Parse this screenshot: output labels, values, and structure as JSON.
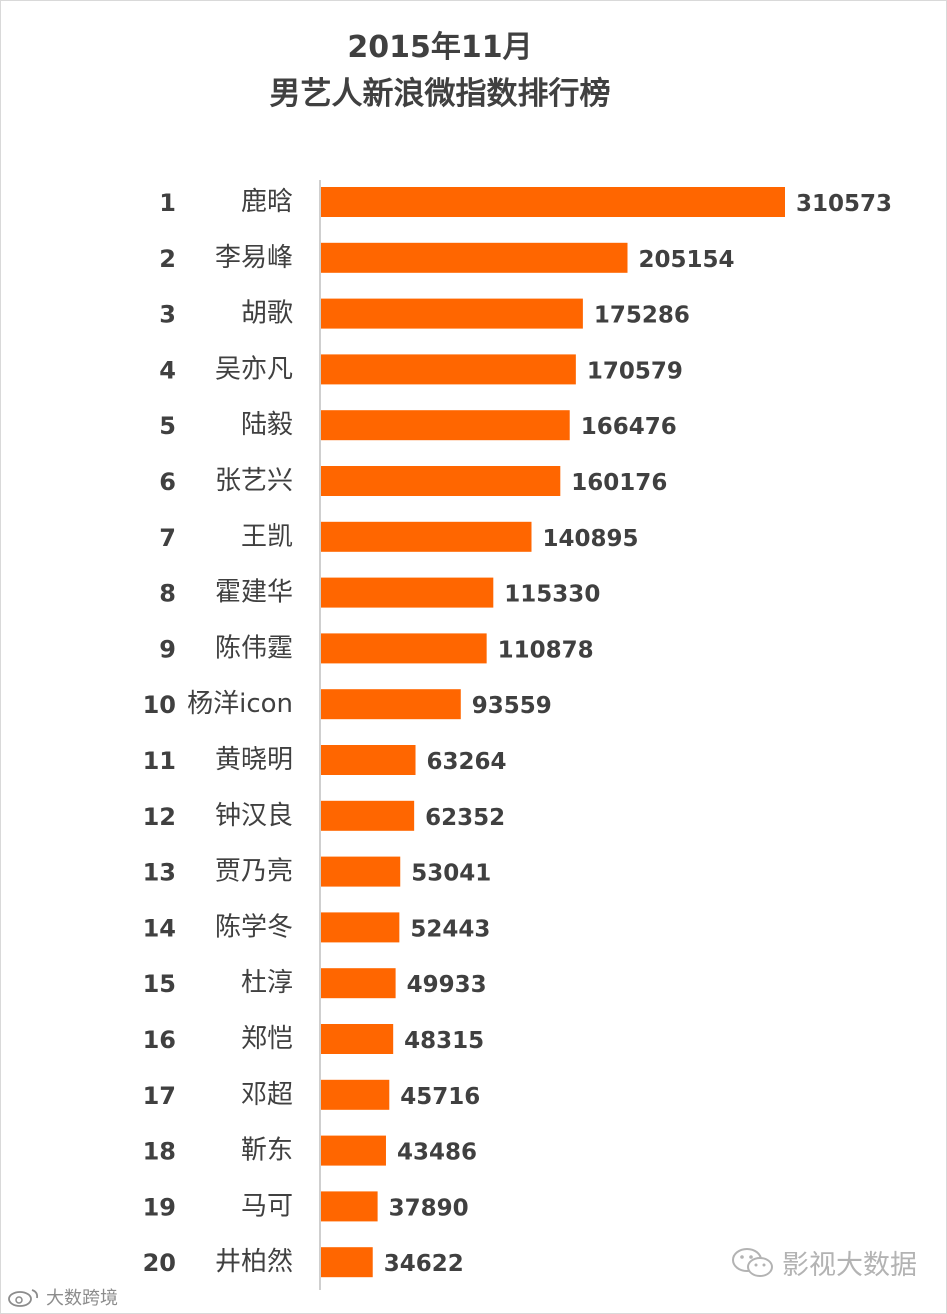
{
  "chart_data": {
    "type": "bar",
    "orientation": "horizontal",
    "title": "2015年11月",
    "subtitle": "男艺人新浪微指数排行榜",
    "ranks": [
      "1",
      "2",
      "3",
      "4",
      "5",
      "6",
      "7",
      "8",
      "9",
      "10",
      "11",
      "12",
      "13",
      "14",
      "15",
      "16",
      "17",
      "18",
      "19",
      "20"
    ],
    "categories": [
      "鹿晗",
      "李易峰",
      "胡歌",
      "吴亦凡",
      "陆毅",
      "张艺兴",
      "王凯",
      "霍建华",
      "陈伟霆",
      "杨洋icon",
      "黄晓明",
      "钟汉良",
      "贾乃亮",
      "陈学冬",
      "杜淳",
      "郑恺",
      "邓超",
      "靳东",
      "马可",
      "井柏然"
    ],
    "values": [
      310573,
      205154,
      175286,
      170579,
      166476,
      160176,
      140895,
      115330,
      110878,
      93559,
      63264,
      62352,
      53041,
      52443,
      49933,
      48315,
      45716,
      43486,
      37890,
      34622
    ],
    "bar_color": "#ff6600",
    "grid": false,
    "legend": "none"
  },
  "watermarks": {
    "right_text": "影视大数据",
    "right_icon": "wechat-icon",
    "left_text": "大数跨境",
    "left_icon": "weibo-icon"
  }
}
